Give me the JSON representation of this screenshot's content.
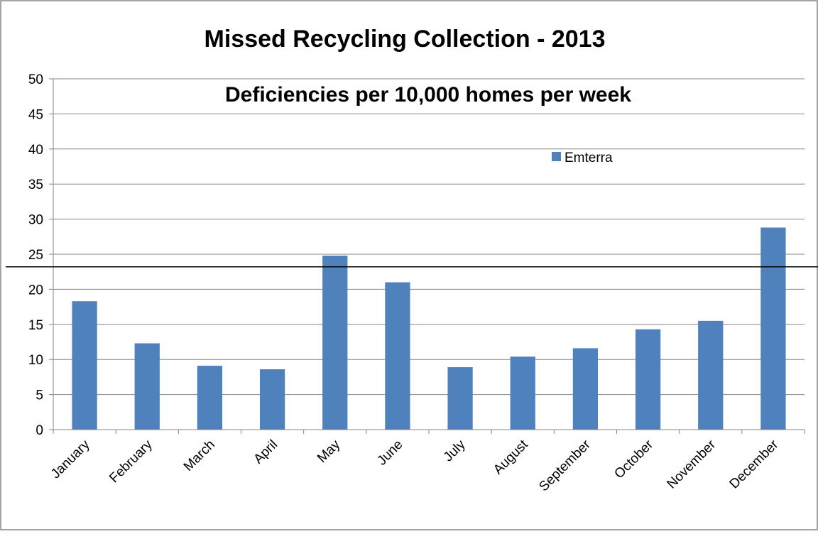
{
  "colors": {
    "bar": "#4f81bd",
    "gridline": "#868686",
    "axis": "#868686",
    "reference_line": "#000000",
    "border": "#868686",
    "background": "#ffffff"
  },
  "chart_data": {
    "type": "bar",
    "title": "Missed Recycling Collection - 2013",
    "subtitle": "Deficiencies per 10,000 homes per week",
    "xlabel": "",
    "ylabel": "",
    "categories": [
      "January",
      "February",
      "March",
      "April",
      "May",
      "June",
      "July",
      "August",
      "September",
      "October",
      "November",
      "December"
    ],
    "series": [
      {
        "name": "Emterra",
        "values": [
          18.3,
          12.3,
          9.1,
          8.6,
          24.8,
          21.0,
          8.9,
          10.4,
          11.6,
          14.3,
          15.5,
          28.8
        ]
      }
    ],
    "ylim": [
      0,
      50
    ],
    "yticks": [
      0,
      5,
      10,
      15,
      20,
      25,
      30,
      35,
      40,
      45,
      50
    ],
    "reference_line_value": 23.2,
    "grid": true,
    "legend_position": "top-right"
  }
}
